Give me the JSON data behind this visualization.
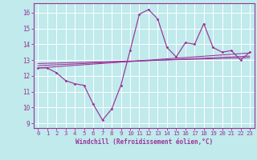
{
  "xlabel": "Windchill (Refroidissement éolien,°C)",
  "bg_color": "#c0eaec",
  "line_color": "#993399",
  "grid_color": "#ffffff",
  "ylim": [
    8.7,
    16.6
  ],
  "xlim": [
    -0.5,
    23.5
  ],
  "yticks": [
    9,
    10,
    11,
    12,
    13,
    14,
    15,
    16
  ],
  "xticks": [
    0,
    1,
    2,
    3,
    4,
    5,
    6,
    7,
    8,
    9,
    10,
    11,
    12,
    13,
    14,
    15,
    16,
    17,
    18,
    19,
    20,
    21,
    22,
    23
  ],
  "main_data_x": [
    0,
    1,
    2,
    3,
    4,
    5,
    6,
    7,
    8,
    9,
    10,
    11,
    12,
    13,
    14,
    15,
    16,
    17,
    18,
    19,
    20,
    21,
    22,
    23
  ],
  "main_data_y": [
    12.5,
    12.5,
    12.2,
    11.7,
    11.5,
    11.4,
    10.2,
    9.2,
    9.9,
    11.4,
    13.6,
    15.9,
    16.2,
    15.6,
    13.8,
    13.2,
    14.1,
    14.0,
    15.3,
    13.8,
    13.5,
    13.6,
    13.0,
    13.5
  ],
  "trend_lines": [
    {
      "x": [
        0,
        23
      ],
      "y": [
        12.5,
        13.45
      ]
    },
    {
      "x": [
        0,
        23
      ],
      "y": [
        12.65,
        13.25
      ]
    },
    {
      "x": [
        0,
        23
      ],
      "y": [
        12.78,
        13.15
      ]
    }
  ]
}
